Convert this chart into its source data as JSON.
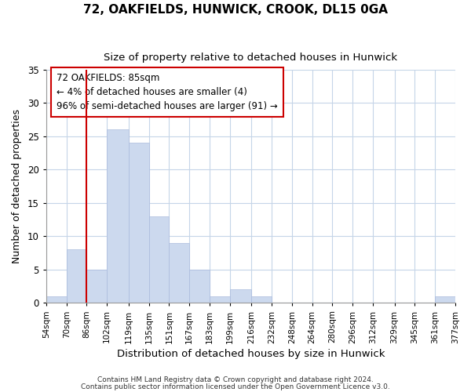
{
  "title": "72, OAKFIELDS, HUNWICK, CROOK, DL15 0GA",
  "subtitle": "Size of property relative to detached houses in Hunwick",
  "xlabel": "Distribution of detached houses by size in Hunwick",
  "ylabel": "Number of detached properties",
  "bar_color": "#ccd9ee",
  "bar_edge_color": "#aabbdd",
  "marker_line_color": "#cc0000",
  "bin_edges": [
    54,
    70,
    86,
    102,
    119,
    135,
    151,
    167,
    183,
    199,
    216,
    232,
    248,
    264,
    280,
    296,
    312,
    329,
    345,
    361,
    377
  ],
  "bin_labels": [
    "54sqm",
    "70sqm",
    "86sqm",
    "102sqm",
    "119sqm",
    "135sqm",
    "151sqm",
    "167sqm",
    "183sqm",
    "199sqm",
    "216sqm",
    "232sqm",
    "248sqm",
    "264sqm",
    "280sqm",
    "296sqm",
    "312sqm",
    "329sqm",
    "345sqm",
    "361sqm",
    "377sqm"
  ],
  "counts": [
    1,
    8,
    5,
    26,
    24,
    13,
    9,
    5,
    1,
    2,
    1,
    0,
    0,
    0,
    0,
    0,
    0,
    0,
    0,
    1
  ],
  "ylim": [
    0,
    35
  ],
  "yticks": [
    0,
    5,
    10,
    15,
    20,
    25,
    30,
    35
  ],
  "annotation_title": "72 OAKFIELDS: 85sqm",
  "annotation_line1": "← 4% of detached houses are smaller (4)",
  "annotation_line2": "96% of semi-detached houses are larger (91) →",
  "footer_line1": "Contains HM Land Registry data © Crown copyright and database right 2024.",
  "footer_line2": "Contains public sector information licensed under the Open Government Licence v3.0."
}
